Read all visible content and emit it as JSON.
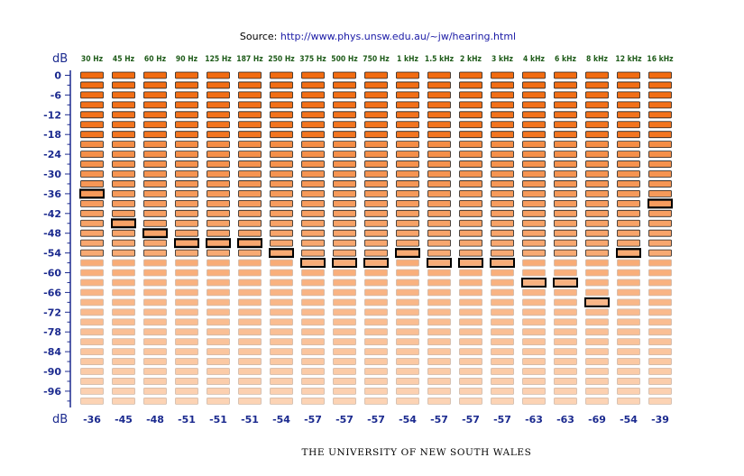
{
  "source_prefix": "Source: ",
  "source_url": "http://www.phys.unsw.edu.au/~jw/hearing.html",
  "footer": "THE UNIVERSITY OF NEW SOUTH WALES",
  "db_label_top": "dB",
  "db_label_bottom": "dB",
  "chart_data": {
    "type": "heatmap",
    "ylabel": "dB",
    "ylim": [
      -101,
      0
    ],
    "y_step": 3,
    "yticks": [
      "0",
      "-6",
      "-12",
      "-18",
      "-24",
      "-30",
      "-36",
      "-42",
      "-48",
      "-54",
      "-60",
      "-66",
      "-72",
      "-78",
      "-84",
      "-90",
      "-96"
    ],
    "categories": [
      "30 Hz",
      "45 Hz",
      "60 Hz",
      "90 Hz",
      "125 Hz",
      "187 Hz",
      "250 Hz",
      "375 Hz",
      "500 Hz",
      "750 Hz",
      "1 kHz",
      "1.5 kHz",
      "2 kHz",
      "3 kHz",
      "4 kHz",
      "6 kHz",
      "8 kHz",
      "12 kHz",
      "16 kHz"
    ],
    "values": [
      -36,
      -45,
      -48,
      -51,
      -51,
      -51,
      -54,
      -57,
      -57,
      -57,
      -54,
      -57,
      -57,
      -57,
      -63,
      -63,
      -69,
      -54,
      -39
    ],
    "value_labels": [
      "-36",
      "-45",
      "-48",
      "-51",
      "-51",
      "-51",
      "-54",
      "-57",
      "-57",
      "-57",
      "-54",
      "-57",
      "-57",
      "-57",
      "-63",
      "-63",
      "-69",
      "-54",
      "-39"
    ],
    "colors": {
      "high": "#f26b10",
      "low": "#fcd3b4",
      "border_dark": "#222222",
      "border_light": "#cfb8a8",
      "marker": "#000000"
    }
  }
}
